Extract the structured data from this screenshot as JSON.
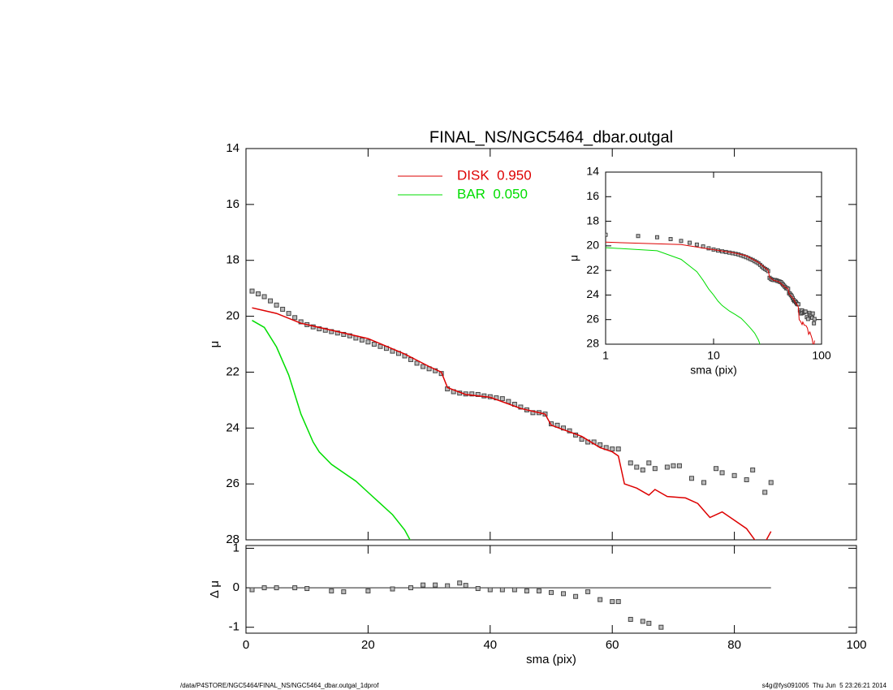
{
  "chart_data": [
    {
      "type": "profile",
      "title": "FINAL_NS/NGC5464_dbar.outgal",
      "ylabel": "μ",
      "xlim": [
        0,
        100
      ],
      "xticks": [
        0,
        20,
        40,
        60,
        80,
        100
      ],
      "ylim": [
        14,
        28
      ],
      "yreverse": true,
      "yticks": [
        14,
        16,
        18,
        20,
        22,
        24,
        26,
        28
      ],
      "points": {
        "color": "#444444",
        "x": [
          1,
          2,
          3,
          4,
          5,
          6,
          7,
          8,
          9,
          10,
          11,
          12,
          13,
          14,
          15,
          16,
          17,
          18,
          19,
          20,
          21,
          22,
          23,
          24,
          25,
          26,
          27,
          28,
          29,
          30,
          31,
          32,
          33,
          34,
          35,
          36,
          37,
          38,
          39,
          40,
          41,
          42,
          43,
          44,
          45,
          46,
          47,
          48,
          49,
          50,
          51,
          52,
          53,
          54,
          55,
          56,
          57,
          58,
          59,
          60,
          61,
          63,
          64,
          65,
          66,
          67,
          69,
          70,
          71,
          73,
          75,
          77,
          78,
          80,
          82,
          83,
          85,
          86
        ],
        "values": [
          19.1,
          19.2,
          19.3,
          19.45,
          19.6,
          19.75,
          19.9,
          20.05,
          20.2,
          20.3,
          20.38,
          20.45,
          20.5,
          20.55,
          20.6,
          20.65,
          20.7,
          20.78,
          20.85,
          20.92,
          21.0,
          21.08,
          21.15,
          21.25,
          21.33,
          21.42,
          21.55,
          21.68,
          21.8,
          21.88,
          21.95,
          22.05,
          22.6,
          22.7,
          22.75,
          22.78,
          22.78,
          22.8,
          22.85,
          22.88,
          22.92,
          22.95,
          23.05,
          23.15,
          23.25,
          23.35,
          23.45,
          23.45,
          23.5,
          23.85,
          23.9,
          24.0,
          24.1,
          24.25,
          24.4,
          24.5,
          24.5,
          24.6,
          24.7,
          24.75,
          24.75,
          25.25,
          25.4,
          25.5,
          25.25,
          25.45,
          25.4,
          25.35,
          25.35,
          25.8,
          25.95,
          25.45,
          25.6,
          25.7,
          25.85,
          25.5,
          26.3,
          25.95
        ]
      },
      "series": [
        {
          "name": "DISK  0.950",
          "color": "#dd0000",
          "x": [
            1,
            5,
            9,
            15,
            20,
            26,
            30,
            32,
            33,
            36,
            40,
            45,
            49,
            50,
            55,
            58,
            60,
            61,
            62,
            64,
            66,
            67,
            69,
            72,
            74,
            76,
            78,
            80,
            82,
            84,
            85,
            86
          ],
          "values": [
            19.7,
            19.9,
            20.25,
            20.55,
            20.8,
            21.35,
            21.8,
            22.0,
            22.55,
            22.8,
            22.9,
            23.3,
            23.5,
            23.9,
            24.3,
            24.7,
            24.85,
            25.0,
            26.0,
            26.15,
            26.4,
            26.2,
            26.45,
            26.5,
            26.7,
            27.2,
            27.0,
            27.3,
            27.6,
            28.2,
            28.1,
            27.7
          ]
        },
        {
          "name": "BAR  0.050",
          "color": "#00dd00",
          "x": [
            1,
            3,
            5,
            7,
            8,
            9,
            10,
            11,
            12,
            14,
            16,
            18,
            20,
            22,
            24,
            26,
            27
          ],
          "values": [
            20.15,
            20.4,
            21.1,
            22.1,
            22.8,
            23.5,
            24.0,
            24.5,
            24.85,
            25.3,
            25.6,
            25.9,
            26.3,
            26.7,
            27.1,
            27.65,
            28.05
          ]
        }
      ]
    },
    {
      "type": "residual",
      "ylabel": "Δ μ",
      "xlabel": "sma (pix)",
      "xlim": [
        0,
        100
      ],
      "xticks": [
        0,
        20,
        40,
        60,
        80,
        100
      ],
      "ylim": [
        -1.15,
        1.07
      ],
      "yticks": [
        1,
        0,
        -1
      ],
      "hline": 0,
      "color": "#444444",
      "x": [
        1,
        3,
        5,
        8,
        10,
        14,
        16,
        20,
        24,
        27,
        29,
        31,
        33,
        35,
        36,
        38,
        40,
        42,
        44,
        46,
        48,
        50,
        52,
        54,
        56,
        58,
        60,
        61,
        63,
        65,
        66,
        68
      ],
      "values": [
        -0.05,
        0,
        0,
        0,
        -0.02,
        -0.08,
        -0.1,
        -0.08,
        -0.03,
        0,
        0.07,
        0.07,
        0.05,
        0.12,
        0.06,
        -0.02,
        -0.05,
        -0.05,
        -0.05,
        -0.08,
        -0.08,
        -0.12,
        -0.15,
        -0.22,
        -0.1,
        -0.3,
        -0.35,
        -0.35,
        -0.8,
        -0.85,
        -0.9,
        -1.0
      ]
    },
    {
      "type": "inset",
      "ylabel": "μ",
      "xlabel": "sma (pix)",
      "xscale": "log",
      "xlim": [
        1,
        100
      ],
      "xticks": [
        1,
        10,
        100
      ],
      "ylim": [
        14,
        28
      ],
      "yreverse": true,
      "yticks": [
        14,
        16,
        18,
        20,
        22,
        24,
        26,
        28
      ]
    }
  ],
  "footer": {
    "left": "/data/P4STORE/NGC5464/FINAL_NS/NGC5464_dbar.outgal_1dprof",
    "right": "s4g@fys091005  Thu Jun  5 23:26:21 2014"
  }
}
